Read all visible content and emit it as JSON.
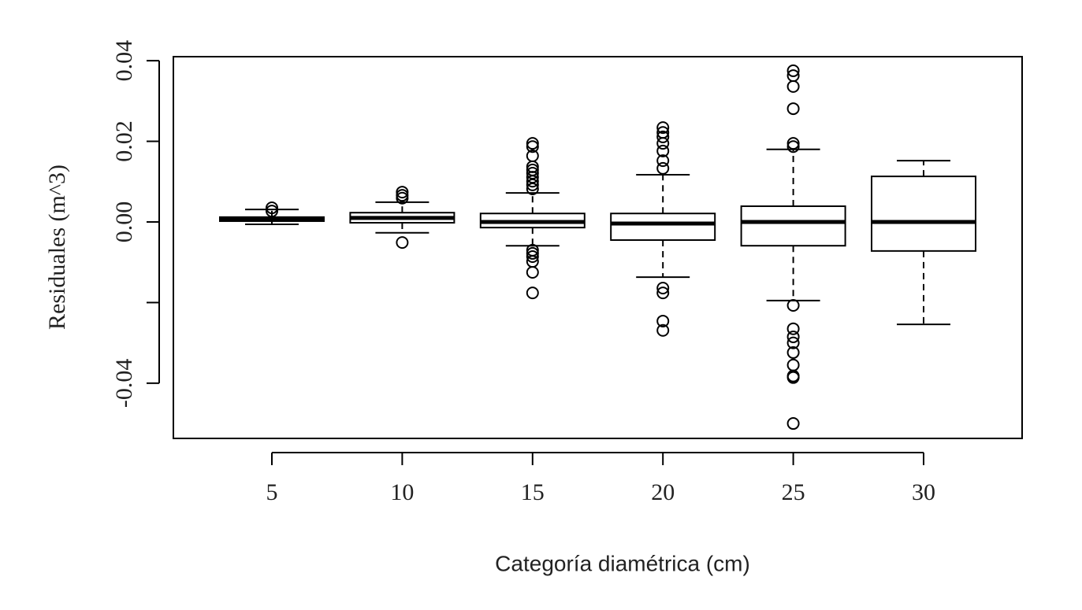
{
  "chart_data": {
    "type": "box",
    "x_label": "Categoría diamétrica (cm)",
    "y_label": "Residuales (m^3)",
    "categories": [
      "5",
      "10",
      "15",
      "20",
      "25",
      "30"
    ],
    "boxes": [
      {
        "min": -0.0006,
        "q1": 0.0002,
        "median": 0.0006,
        "q3": 0.0012,
        "max": 0.0031,
        "outliers": [
          0.0035,
          0.0027
        ]
      },
      {
        "min": -0.0027,
        "q1": -0.0002,
        "median": 0.001,
        "q3": 0.0023,
        "max": 0.0049,
        "outliers": [
          0.0074,
          0.0066,
          0.0059,
          -0.0051
        ]
      },
      {
        "min": -0.0059,
        "q1": -0.0014,
        "median": 0.0,
        "q3": 0.0021,
        "max": 0.0072,
        "outliers": [
          0.0195,
          0.0187,
          0.0164,
          0.0137,
          0.0129,
          0.0121,
          0.0111,
          0.0101,
          0.0092,
          0.0082,
          -0.007,
          -0.0078,
          -0.0086,
          -0.0098,
          -0.0125,
          -0.0176
        ]
      },
      {
        "min": -0.0137,
        "q1": -0.0045,
        "median": -0.0004,
        "q3": 0.0021,
        "max": 0.0117,
        "outliers": [
          0.0234,
          0.0222,
          0.0211,
          0.0195,
          0.0176,
          0.0152,
          0.0133,
          -0.0164,
          -0.0176,
          -0.0246,
          -0.0269
        ]
      },
      {
        "min": -0.0195,
        "q1": -0.0059,
        "median": 0.0,
        "q3": 0.0039,
        "max": 0.018,
        "outliers": [
          0.0375,
          0.0363,
          0.0336,
          0.0281,
          0.0195,
          0.0187,
          -0.0207,
          -0.0265,
          -0.0285,
          -0.03,
          -0.0324,
          -0.0355,
          -0.0382,
          -0.0386,
          -0.05
        ]
      },
      {
        "min": -0.0254,
        "q1": -0.0072,
        "median": 0.0,
        "q3": 0.0113,
        "max": 0.0152,
        "outliers": []
      }
    ],
    "color": "#000000",
    "ylim": [
      -0.0537,
      0.041
    ],
    "yticks": [
      {
        "value": -0.04,
        "label": "-0.04"
      },
      {
        "value": -0.02,
        "label": null
      },
      {
        "value": 0,
        "label": "0.00"
      },
      {
        "value": 0.02,
        "label": "0.02"
      },
      {
        "value": 0.04,
        "label": "0.04"
      }
    ]
  }
}
